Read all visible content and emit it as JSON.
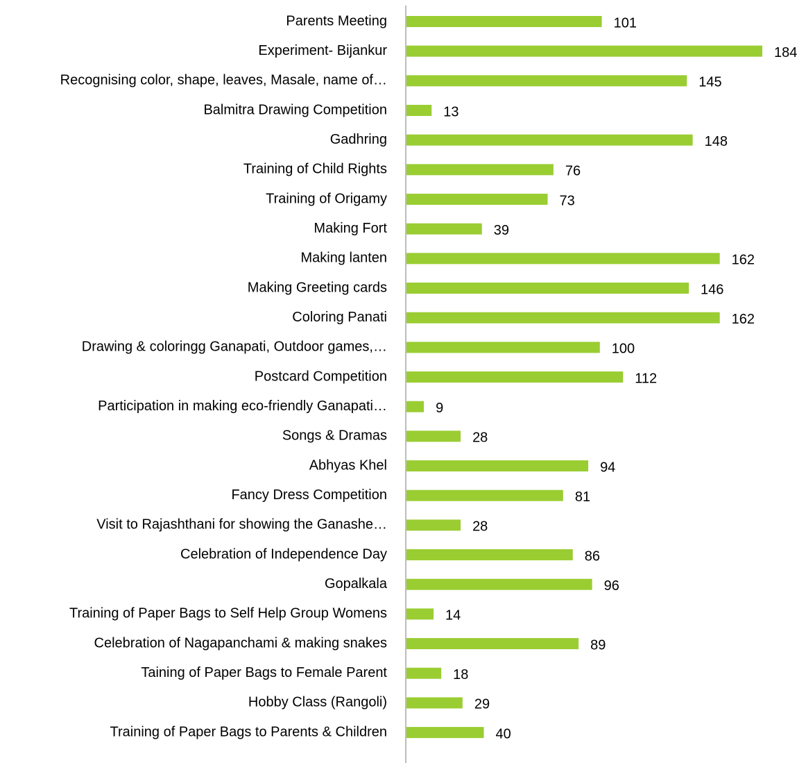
{
  "chart_data": {
    "type": "bar",
    "orientation": "horizontal",
    "categories": [
      "Parents Meeting",
      "Experiment- Bijankur",
      "Recognising color, shape, leaves, Masale, name of…",
      "Balmitra Drawing Competition",
      "Gadhring",
      "Training of Child Rights",
      "Training of Origamy",
      "Making Fort",
      "Making lanten",
      "Making Greeting cards",
      "Coloring Panati",
      "Drawing & coloringg Ganapati, Outdoor games,…",
      "Postcard Competition",
      "Participation in making eco-friendly Ganapati…",
      "Songs & Dramas",
      "Abhyas Khel",
      "Fancy Dress Competition",
      "Visit to Rajashthani for showing the Ganashe…",
      "Celebration of Independence Day",
      "Gopalkala",
      "Training of Paper Bags to Self Help Group Womens",
      "Celebration of Nagapanchami & making snakes",
      "Taining of Paper Bags to Female Parent",
      "Hobby Class (Rangoli)",
      "Training of Paper Bags to Parents & Children"
    ],
    "values": [
      101,
      184,
      145,
      13,
      148,
      76,
      73,
      39,
      162,
      146,
      162,
      100,
      112,
      9,
      28,
      94,
      81,
      28,
      86,
      96,
      14,
      89,
      18,
      29,
      40
    ],
    "color": "#9acd32"
  }
}
